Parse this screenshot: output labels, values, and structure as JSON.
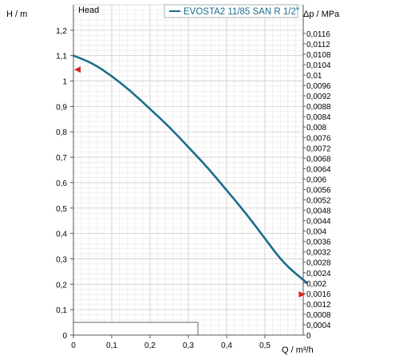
{
  "chart_data": {
    "type": "line",
    "title": "",
    "panel_label": "Head",
    "xlabel": "Q / m³/h",
    "ylabel": "H / m",
    "y2label": "Δp / MPa",
    "xlim": [
      0,
      0.6
    ],
    "ylim": [
      0,
      1.3
    ],
    "y2lim": [
      0,
      0.0127
    ],
    "x_ticks": [
      "0",
      "0,1",
      "0,2",
      "0,3",
      "0,4",
      "0,5"
    ],
    "y_ticks": [
      "0",
      "0,1",
      "0,2",
      "0,3",
      "0,4",
      "0,5",
      "0,6",
      "0,7",
      "0,8",
      "0,9",
      "1",
      "1,1",
      "1,2"
    ],
    "y2_ticks": [
      "0",
      "0,0004",
      "0,0008",
      "0,0012",
      "0,0016",
      "0,002",
      "0,0024",
      "0,0028",
      "0,0032",
      "0,0036",
      "0,004",
      "0,0044",
      "0,0048",
      "0,0052",
      "0,0056",
      "0,006",
      "0,0064",
      "0,0068",
      "0,0072",
      "0,0076",
      "0,008",
      "0,0084",
      "0,0088",
      "0,0092",
      "0,0096",
      "0,01",
      "0,0104",
      "0,0108",
      "0,0112",
      "0,0116"
    ],
    "grid": true,
    "legend_position": "top-right",
    "series": [
      {
        "name": "EVOSTA2 11/85 SAN R 1/2\"",
        "color": "#1b6e8c",
        "x": [
          0,
          0.05,
          0.1,
          0.15,
          0.2,
          0.25,
          0.3,
          0.35,
          0.4,
          0.45,
          0.5,
          0.55,
          0.61
        ],
        "y": [
          1.1,
          1.07,
          1.02,
          0.96,
          0.89,
          0.82,
          0.74,
          0.66,
          0.57,
          0.48,
          0.38,
          0.28,
          0.205
        ]
      }
    ],
    "markers": [
      {
        "x": 0.0,
        "y": 1.045,
        "direction": "left",
        "color": "#e02020"
      },
      {
        "x": 0.605,
        "y": 0.16,
        "direction": "right",
        "color": "#e02020"
      }
    ],
    "box": {
      "x": [
        0,
        0.325
      ],
      "y": [
        0,
        0.05
      ]
    }
  }
}
